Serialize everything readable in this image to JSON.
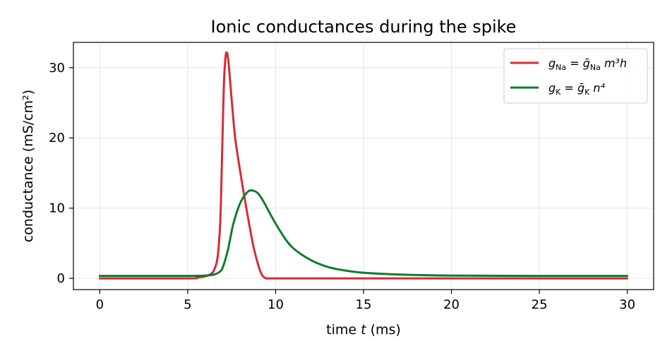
{
  "chart_data": {
    "type": "line",
    "title": "Ionic conductances during the spike",
    "xlabel_prefix": "time ",
    "xlabel_var": "t",
    "xlabel_suffix": " (ms)",
    "ylabel": "conductance (mS/cm²)",
    "xlim": [
      -1.5,
      31.5
    ],
    "ylim": [
      -1.6,
      33.6
    ],
    "xticks": [
      0,
      5,
      10,
      15,
      20,
      25,
      30
    ],
    "yticks": [
      0,
      10,
      20,
      30
    ],
    "grid": true,
    "legend_position": "top-right",
    "series": [
      {
        "name": "g_Na = ḡ_Na m³h",
        "color": "#d62c34",
        "x": [
          0,
          5,
          5.5,
          6,
          6.3,
          6.5,
          6.7,
          6.85,
          6.95,
          7.05,
          7.15,
          7.25,
          7.35,
          7.5,
          7.7,
          8.0,
          8.3,
          8.7,
          9.0,
          9.2,
          9.35,
          9.5,
          10,
          15,
          20,
          25,
          30
        ],
        "y": [
          0,
          0,
          0.1,
          0.3,
          0.6,
          1.2,
          3.0,
          8.0,
          17.0,
          27.0,
          31.5,
          32.0,
          30.0,
          25.5,
          20.0,
          15.0,
          10.5,
          5.0,
          2.0,
          0.6,
          0.15,
          0,
          0,
          0,
          0,
          0,
          0
        ]
      },
      {
        "name": "g_K = ḡ_K n⁴",
        "color": "#127a2e",
        "x": [
          0,
          5,
          6,
          6.5,
          6.8,
          7.0,
          7.3,
          7.6,
          8.0,
          8.4,
          8.7,
          9.0,
          9.3,
          9.6,
          10,
          10.5,
          11,
          12,
          13,
          14,
          15,
          17,
          20,
          25,
          30
        ],
        "y": [
          0.35,
          0.35,
          0.4,
          0.55,
          0.9,
          1.6,
          4.2,
          7.8,
          10.8,
          12.3,
          12.5,
          12.1,
          11.0,
          9.6,
          7.8,
          5.8,
          4.3,
          2.6,
          1.6,
          1.1,
          0.8,
          0.55,
          0.4,
          0.35,
          0.35
        ]
      }
    ]
  },
  "legend": [
    {
      "sym": "g",
      "sub": "Na",
      "eq": " = ",
      "bar": "ḡ",
      "bsub": "Na",
      "tail": " m³h"
    },
    {
      "sym": "g",
      "sub": "K",
      "eq": " = ",
      "bar": "ḡ",
      "bsub": "K",
      "tail": " n⁴"
    }
  ]
}
